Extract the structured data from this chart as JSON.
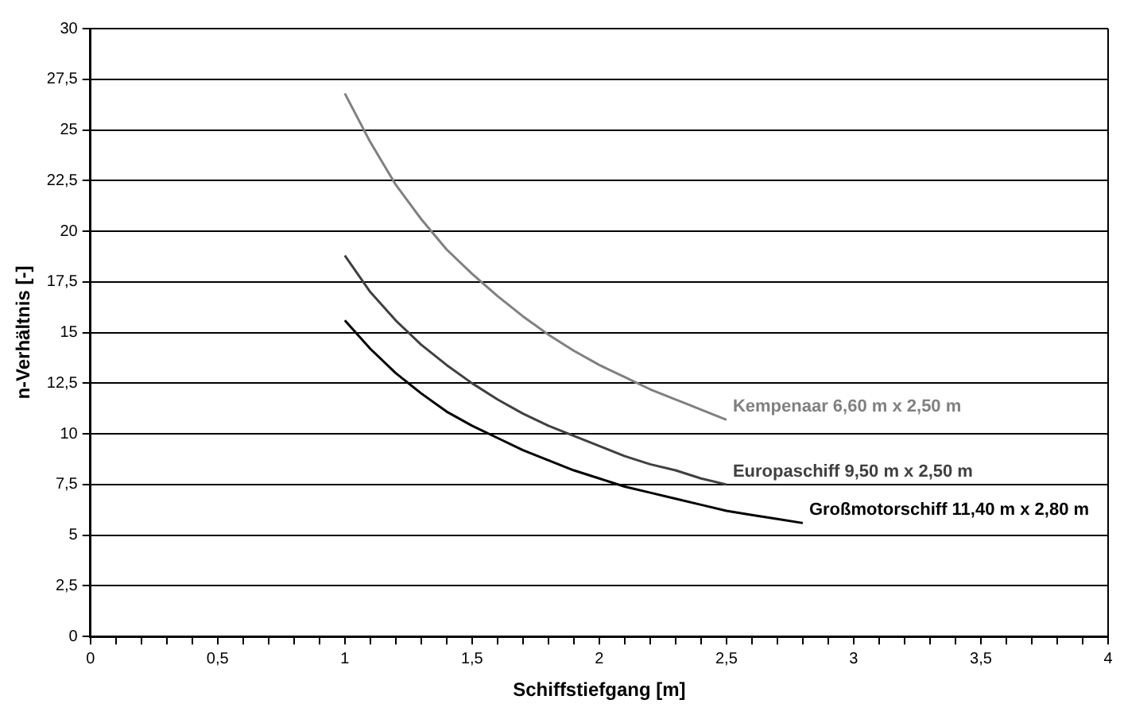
{
  "chart_data": {
    "type": "line",
    "xlabel": "Schiffstiefgang [m]",
    "ylabel": "n-Verhältnis [-]",
    "xlim": [
      0,
      4
    ],
    "ylim": [
      0,
      30
    ],
    "xticks": [
      0,
      {
        "value": 0.1,
        "label": null
      },
      {
        "value": 0.2,
        "label": null
      },
      {
        "value": 0.3,
        "label": null
      },
      {
        "value": 0.4,
        "label": null
      },
      {
        "value": 0.5,
        "label": "0,5"
      },
      {
        "value": 0.6,
        "label": null
      },
      {
        "value": 0.7,
        "label": null
      },
      {
        "value": 0.8,
        "label": null
      },
      {
        "value": 0.9,
        "label": null
      },
      1,
      {
        "value": 1.1,
        "label": null
      },
      {
        "value": 1.2,
        "label": null
      },
      {
        "value": 1.3,
        "label": null
      },
      {
        "value": 1.4,
        "label": null
      },
      {
        "value": 1.5,
        "label": "1,5"
      },
      {
        "value": 1.6,
        "label": null
      },
      {
        "value": 1.7,
        "label": null
      },
      {
        "value": 1.8,
        "label": null
      },
      {
        "value": 1.9,
        "label": null
      },
      2,
      {
        "value": 2.1,
        "label": null
      },
      {
        "value": 2.2,
        "label": null
      },
      {
        "value": 2.3,
        "label": null
      },
      {
        "value": 2.4,
        "label": null
      },
      {
        "value": 2.5,
        "label": "2,5"
      },
      {
        "value": 2.6,
        "label": null
      },
      {
        "value": 2.7,
        "label": null
      },
      {
        "value": 2.8,
        "label": null
      },
      {
        "value": 2.9,
        "label": null
      },
      3,
      {
        "value": 3.1,
        "label": null
      },
      {
        "value": 3.2,
        "label": null
      },
      {
        "value": 3.3,
        "label": null
      },
      {
        "value": 3.4,
        "label": null
      },
      {
        "value": 3.5,
        "label": "3,5"
      },
      {
        "value": 3.6,
        "label": null
      },
      {
        "value": 3.7,
        "label": null
      },
      {
        "value": 3.8,
        "label": null
      },
      {
        "value": 3.9,
        "label": null
      },
      4
    ],
    "yticks": [
      0,
      {
        "value": 2.5,
        "label": "2,5"
      },
      5,
      {
        "value": 7.5,
        "label": "7,5"
      },
      10,
      {
        "value": 12.5,
        "label": "12,5"
      },
      15,
      {
        "value": 17.5,
        "label": "17,5"
      },
      20,
      {
        "value": 22.5,
        "label": "22,5"
      },
      25,
      {
        "value": 27.5,
        "label": "27,5"
      },
      30
    ],
    "grid": "y",
    "legend": false,
    "marker": "none",
    "line_style": "solid",
    "series": [
      {
        "name": "Kempenaar 6,60 m x 2,50 m",
        "color": "#808080",
        "x": [
          1,
          1.1,
          1.2,
          1.3,
          1.4,
          1.5,
          1.6,
          1.7,
          1.8,
          1.9,
          2,
          2.1,
          2.2,
          2.3,
          2.4,
          2.5
        ],
        "values": [
          26.8,
          24.4,
          22.3,
          20.6,
          19.1,
          17.9,
          16.8,
          15.8,
          14.9,
          14.1,
          13.4,
          12.8,
          12.2,
          11.7,
          11.2,
          10.7
        ]
      },
      {
        "name": "Europaschiff 9,50 m x 2,50 m",
        "color": "#404040",
        "x": [
          1,
          1.1,
          1.2,
          1.3,
          1.4,
          1.5,
          1.6,
          1.7,
          1.8,
          1.9,
          2,
          2.1,
          2.2,
          2.3,
          2.4,
          2.5
        ],
        "values": [
          18.8,
          17.0,
          15.6,
          14.4,
          13.4,
          12.5,
          11.7,
          11.0,
          10.4,
          9.9,
          9.4,
          8.9,
          8.5,
          8.2,
          7.8,
          7.5
        ]
      },
      {
        "name": "Großmotorschiff 11,40 m x 2,80 m",
        "color": "#000000",
        "x": [
          1,
          1.1,
          1.2,
          1.3,
          1.4,
          1.5,
          1.6,
          1.7,
          1.8,
          1.9,
          2,
          2.1,
          2.2,
          2.3,
          2.4,
          2.5,
          2.6,
          2.7,
          2.8
        ],
        "values": [
          15.6,
          14.2,
          13.0,
          12.0,
          11.1,
          10.4,
          9.8,
          9.2,
          8.7,
          8.2,
          7.8,
          7.4,
          7.1,
          6.8,
          6.5,
          6.2,
          6.0,
          5.8,
          5.6
        ]
      }
    ]
  }
}
